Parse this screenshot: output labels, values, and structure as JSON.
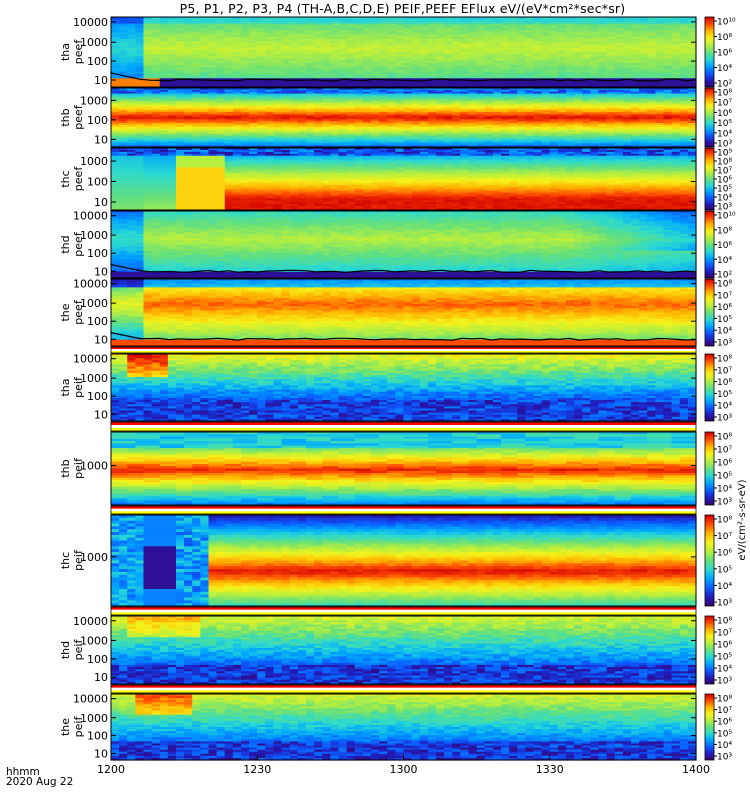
{
  "title": "P5, P1, P2, P3, P4 (TH-A,B,C,D,E) PEIF,PEEF EFlux eV/(eV*cm²*sec*sr)",
  "footer": {
    "time_units": "hhmm",
    "date": "2020 Aug 22"
  },
  "colors": {
    "colormap": [
      "#3a006a",
      "#1f1fbf",
      "#0c5cff",
      "#00a6ff",
      "#2bd9d0",
      "#66e07a",
      "#b7ef3e",
      "#f5f21a",
      "#ffb300",
      "#ff4a00",
      "#d20000"
    ],
    "band": [
      "#ff0000",
      "#ffffff",
      "#ffff00"
    ],
    "trace": "#000000"
  },
  "chart_data": {
    "type": "heatmap",
    "x_axis": {
      "range": [
        "1200",
        "1400"
      ],
      "ticks": [
        "1200",
        "1230",
        "1300",
        "1330",
        "1400"
      ],
      "label": "hhmm"
    },
    "colorbar_label": "eV/(cm²-s-sr-eV)",
    "panels": [
      {
        "name": "tha_peef",
        "ylabel": [
          "tha",
          "peef"
        ],
        "yscale": "log",
        "yticks": [
          "10000",
          "1000",
          "100",
          "10"
        ],
        "colorbar_ticks": [
          "10¹⁰",
          "10⁸",
          "10⁶",
          "10⁴",
          "10²"
        ],
        "pattern": "tha_peef"
      },
      {
        "name": "thb_peef",
        "ylabel": [
          "thb",
          "peef"
        ],
        "yscale": "log",
        "yticks": [
          "1000",
          "100",
          "10"
        ],
        "colorbar_ticks": [
          "10⁸",
          "10⁷",
          "10⁶",
          "10⁵",
          "10⁴",
          "10³"
        ],
        "pattern": "thb_peef"
      },
      {
        "name": "thc_peef",
        "ylabel": [
          "thc",
          "peef"
        ],
        "yscale": "log",
        "yticks": [
          "1000",
          "100",
          "10"
        ],
        "colorbar_ticks": [
          "10⁹",
          "10⁸",
          "10⁷",
          "10⁶",
          "10⁵",
          "10⁴",
          "10³"
        ],
        "pattern": "thc_peef"
      },
      {
        "name": "thd_peef",
        "ylabel": [
          "thd",
          "peef"
        ],
        "yscale": "log",
        "yticks": [
          "10000",
          "1000",
          "100",
          "10"
        ],
        "colorbar_ticks": [
          "10¹⁰",
          "10⁸",
          "10⁶",
          "10⁴",
          "10²"
        ],
        "pattern": "thd_peef"
      },
      {
        "name": "the_peef",
        "ylabel": [
          "the",
          "peef"
        ],
        "yscale": "log",
        "yticks": [
          "10000",
          "1000",
          "100",
          "10"
        ],
        "colorbar_ticks": [
          "10⁸",
          "10⁷",
          "10⁶",
          "10⁵",
          "10⁴",
          "10³"
        ],
        "pattern": "the_peef"
      },
      {
        "name": "tha_peif",
        "ylabel": [
          "tha",
          "peif"
        ],
        "yscale": "log",
        "yticks": [
          "10000",
          "1000",
          "100",
          "10"
        ],
        "colorbar_ticks": [
          "10⁸",
          "10⁷",
          "10⁶",
          "10⁵",
          "10⁴",
          "10³"
        ],
        "pattern": "tha_peif"
      },
      {
        "name": "thb_peif",
        "ylabel": [
          "thb",
          "peif"
        ],
        "yscale": "log",
        "yticks": [
          "1000"
        ],
        "colorbar_ticks": [
          "10⁸",
          "10⁷",
          "10⁶",
          "10⁵",
          "10⁴",
          "10³"
        ],
        "pattern": "thb_peif"
      },
      {
        "name": "thc_peif",
        "ylabel": [
          "thc",
          "peif"
        ],
        "yscale": "log",
        "yticks": [
          "1000"
        ],
        "colorbar_ticks": [
          "10⁸",
          "10⁷",
          "10⁶",
          "10⁵",
          "10⁴",
          "10³"
        ],
        "pattern": "thc_peif"
      },
      {
        "name": "thd_peif",
        "ylabel": [
          "thd",
          "peif"
        ],
        "yscale": "log",
        "yticks": [
          "10000",
          "1000",
          "100",
          "10"
        ],
        "colorbar_ticks": [
          "10⁸",
          "10⁷",
          "10⁶",
          "10⁵",
          "10⁴",
          "10³"
        ],
        "pattern": "thd_peif"
      },
      {
        "name": "the_peif",
        "ylabel": [
          "the",
          "peif"
        ],
        "yscale": "log",
        "yticks": [
          "10000",
          "1000",
          "100",
          "10"
        ],
        "colorbar_ticks": [
          "10⁸",
          "10⁷",
          "10⁶",
          "10⁵",
          "10⁴",
          "10³"
        ],
        "pattern": "the_peif"
      }
    ]
  }
}
